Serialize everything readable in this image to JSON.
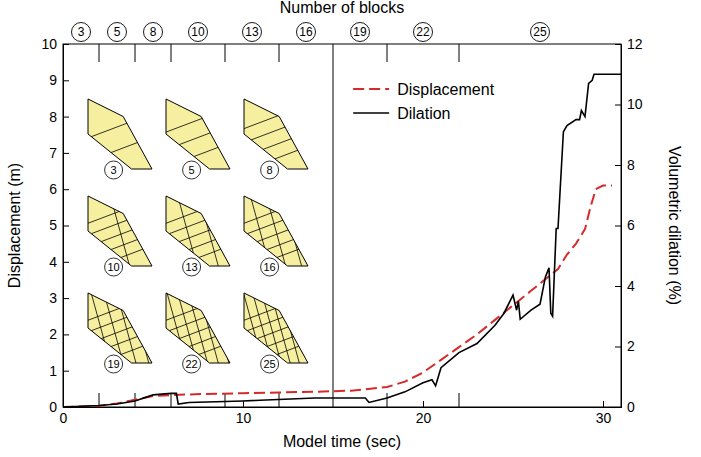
{
  "chart_data": {
    "type": "line",
    "xlabel": "Model time (sec)",
    "ylabel": "Displacement (m)",
    "y2label": "Volumetric dilation (%)",
    "xlim": [
      0,
      31
    ],
    "xticks": [
      0,
      10,
      20,
      30
    ],
    "ylim": [
      0,
      10
    ],
    "yticks": [
      0,
      1,
      2,
      3,
      4,
      5,
      6,
      7,
      8,
      9,
      10
    ],
    "y2lim": [
      0,
      12
    ],
    "y2ticks": [
      0,
      2,
      4,
      6,
      8,
      10,
      12
    ],
    "legend": "top",
    "stages": {
      "title": "Number of blocks",
      "edges": [
        2,
        4,
        6,
        9,
        12,
        15,
        18,
        22
      ],
      "labels": [
        3,
        5,
        8,
        10,
        13,
        16,
        19,
        22,
        25
      ]
    },
    "insets": {
      "labels": [
        3,
        5,
        8,
        10,
        13,
        16,
        19,
        22,
        25
      ]
    },
    "series": [
      {
        "name": "Displacement",
        "color": "#d42a2a",
        "line_style": "dashed",
        "x": [
          0,
          2,
          3,
          4,
          5,
          6,
          8,
          10,
          12,
          14,
          16,
          18,
          19,
          20,
          21,
          22,
          23,
          24,
          25,
          26,
          27,
          27.5,
          28,
          28.5,
          29,
          29.3,
          29.6,
          30,
          30.5
        ],
        "values": [
          0,
          0.03,
          0.1,
          0.2,
          0.3,
          0.33,
          0.36,
          0.38,
          0.4,
          0.42,
          0.45,
          0.55,
          0.7,
          0.95,
          1.3,
          1.65,
          2.0,
          2.4,
          2.8,
          3.2,
          3.6,
          3.8,
          4.2,
          4.5,
          4.9,
          5.5,
          6.0,
          6.1,
          6.1
        ]
      },
      {
        "name": "Dilation",
        "color": "#000000",
        "line_style": "solid",
        "axis": "y2",
        "x": [
          0,
          2,
          3,
          4,
          5,
          6,
          6.3,
          6.4,
          7,
          10,
          14,
          16.8,
          17,
          18,
          19,
          20,
          20.5,
          20.7,
          21,
          22,
          23,
          24,
          24.5,
          25,
          25.2,
          25.3,
          25.4,
          26,
          26.5,
          26.8,
          27,
          27.1,
          27.2,
          27.4,
          27.5,
          27.8,
          28,
          28.5,
          28.7,
          28.8,
          29,
          29.2,
          29.4,
          29.5,
          30,
          31
        ],
        "values": [
          0,
          0.05,
          0.1,
          0.2,
          0.4,
          0.45,
          0.45,
          0.1,
          0.15,
          0.2,
          0.3,
          0.3,
          0.15,
          0.3,
          0.5,
          0.8,
          0.9,
          0.7,
          1.3,
          1.8,
          2.1,
          2.7,
          3.1,
          3.7,
          3.2,
          3.5,
          2.9,
          3.2,
          3.4,
          4.3,
          4.6,
          3.1,
          3.0,
          5.9,
          5.9,
          9.1,
          9.3,
          9.5,
          9.5,
          9.8,
          9.6,
          10.7,
          10.8,
          11,
          11,
          11
        ]
      }
    ]
  }
}
